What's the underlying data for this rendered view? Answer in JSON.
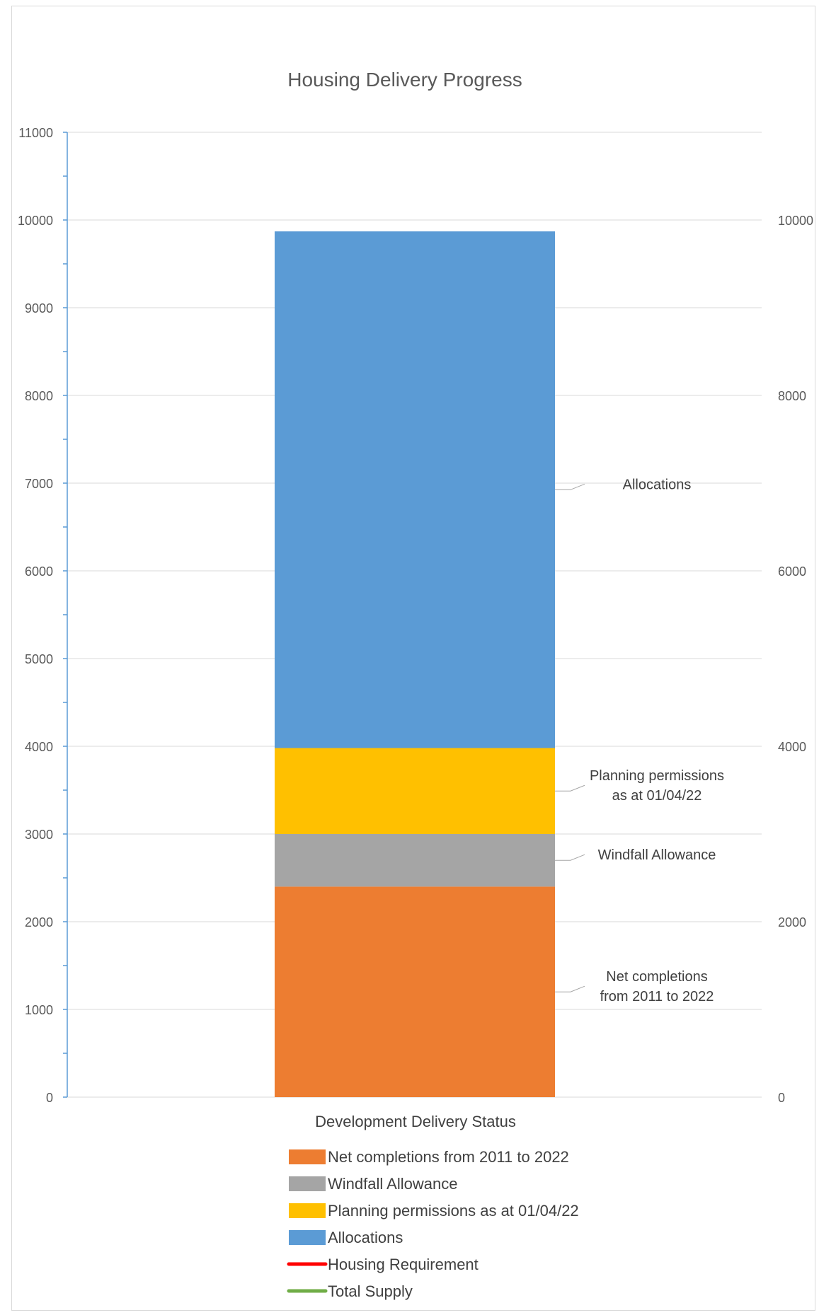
{
  "chart_data": {
    "type": "bar",
    "stacked": true,
    "title": "Housing Delivery Progress",
    "xlabel": "Development Delivery Status",
    "categories": [
      ""
    ],
    "series": [
      {
        "name": "Net completions from 2011 to 2022",
        "values": [
          2400
        ],
        "color": "#ed7d31",
        "data_label": "Net completions\nfrom 2011 to 2022"
      },
      {
        "name": "Windfall Allowance",
        "values": [
          600
        ],
        "color": "#a5a5a5",
        "data_label": "Windfall Allowance"
      },
      {
        "name": "Planning permissions as at 01/04/22",
        "values": [
          980
        ],
        "color": "#ffc000",
        "data_label": "Planning permissions\nas at 01/04/22"
      },
      {
        "name": "Allocations",
        "values": [
          5890
        ],
        "color": "#5b9bd5",
        "data_label": "Allocations"
      }
    ],
    "line_series": [
      {
        "name": "Housing Requirement",
        "color": "#ff0000"
      },
      {
        "name": "Total Supply",
        "color": "#70ad47"
      }
    ],
    "y_left": {
      "ylim": [
        0,
        11000
      ],
      "ticks": [
        "0",
        "1000",
        "2000",
        "3000",
        "4000",
        "5000",
        "6000",
        "7000",
        "8000",
        "9000",
        "10000",
        "11000"
      ],
      "tick_values": [
        0,
        1000,
        2000,
        3000,
        4000,
        5000,
        6000,
        7000,
        8000,
        9000,
        10000,
        11000
      ]
    },
    "y_right": {
      "ylim": [
        0,
        11000
      ],
      "ticks": [
        "0",
        "2000",
        "4000",
        "6000",
        "8000",
        "10000"
      ],
      "tick_values": [
        0,
        2000,
        4000,
        6000,
        8000,
        10000
      ]
    },
    "grid": true,
    "legend_position": "bottom"
  }
}
